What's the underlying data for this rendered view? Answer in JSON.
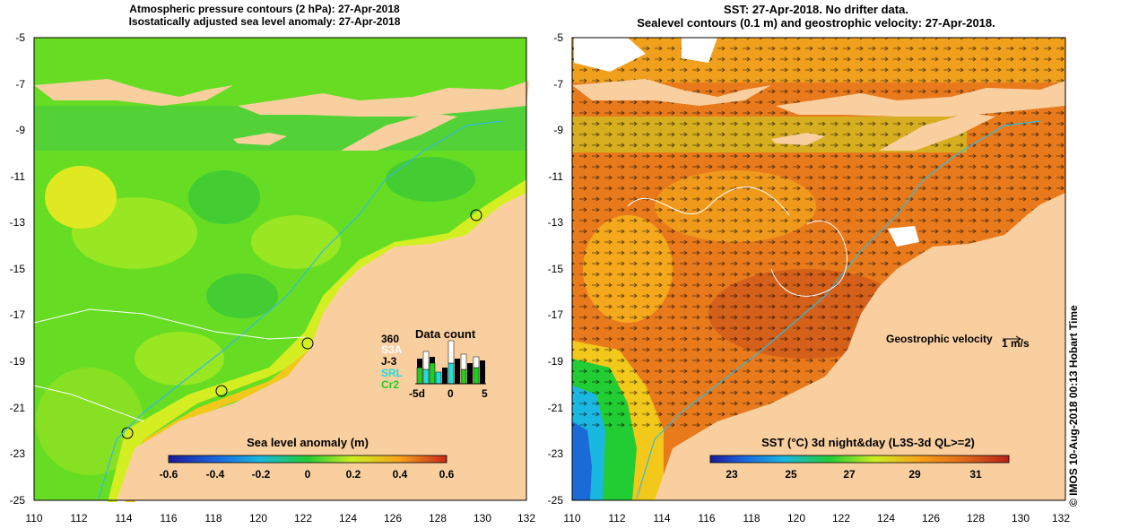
{
  "left_panel": {
    "title_line1": "Atmospheric pressure contours (2 hPa): 27-Apr-2018",
    "title_line2": "Isostatically adjusted sea level anomaly: 27-Apr-2018",
    "y_ticks": [
      "-5",
      "-7",
      "-9",
      "-11",
      "-13",
      "-15",
      "-17",
      "-19",
      "-21",
      "-23",
      "-25"
    ],
    "x_ticks": [
      "110",
      "112",
      "114",
      "116",
      "118",
      "120",
      "122",
      "124",
      "126",
      "128",
      "130",
      "132"
    ],
    "colorbar": {
      "label": "Sea level anomaly (m)",
      "ticks": [
        "-0.6",
        "-0.4",
        "-0.2",
        "0",
        "0.2",
        "0.4",
        "0.6"
      ]
    },
    "data_count": {
      "title": "Data count",
      "ymax": "360",
      "series": [
        {
          "name": "S3A",
          "color": "#ffffff"
        },
        {
          "name": "J-3",
          "color": "#000000"
        },
        {
          "name": "SRL",
          "color": "#22dddd"
        },
        {
          "name": "Cr2",
          "color": "#22cc22"
        }
      ],
      "x_ticks": [
        "-5d",
        "0",
        "5"
      ]
    }
  },
  "right_panel": {
    "title_line1": "SST: 27-Apr-2018. No drifter data.",
    "title_line2": "Sealevel contours (0.1 m) and geostrophic velocity: 27-Apr-2018.",
    "y_ticks": [
      "-5",
      "-7",
      "-9",
      "-11",
      "-13",
      "-15",
      "-17",
      "-19",
      "-21",
      "-23",
      "-25"
    ],
    "x_ticks": [
      "110",
      "112",
      "114",
      "116",
      "118",
      "120",
      "122",
      "124",
      "126",
      "128",
      "130",
      "132"
    ],
    "velocity_legend": "Geostrophic velocity",
    "velocity_unit": "1 m/s",
    "colorbar": {
      "label": "SST (°C) 3d night&day (L3S-3d QL>=2)",
      "ticks": [
        "23",
        "25",
        "27",
        "29",
        "31"
      ]
    }
  },
  "credit": "© IMOS 10-Aug-2018 00:13 Hobart Time",
  "colors": {
    "land": "#f9cfa0",
    "sla_green": "#66dd22",
    "sla_yellow": "#ccee22",
    "sst_orange": "#e87a1c",
    "sst_dark": "#c8501a",
    "sst_blue": "#1a6ad8"
  }
}
